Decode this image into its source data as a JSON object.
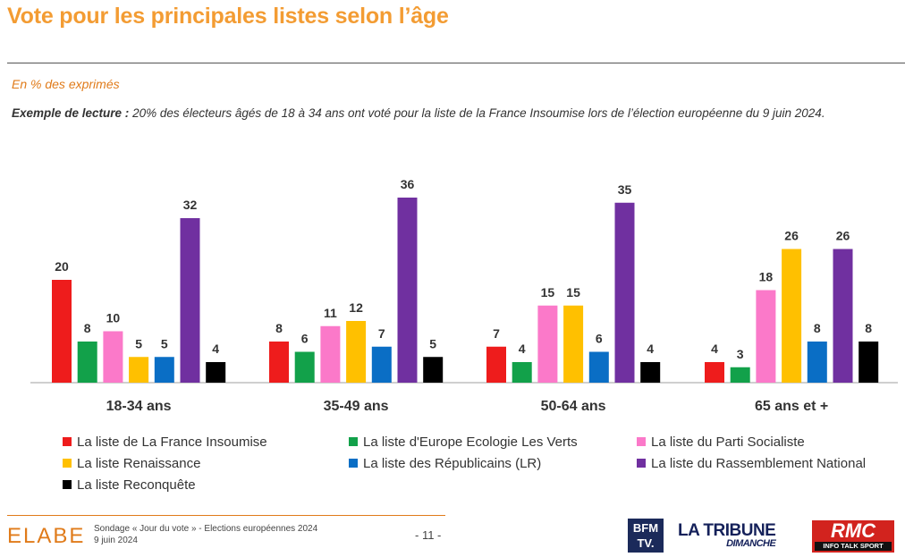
{
  "header": {
    "title": "Vote pour les principales listes selon l’âge",
    "subtitle": "En % des exprimés",
    "reading_label": "Exemple de lecture :",
    "reading_text": " 20% des électeurs âgés de 18 à 34 ans ont voté pour la liste de la France Insoumise lors de l’élection européenne du 9 juin 2024."
  },
  "chart_data": {
    "type": "bar",
    "title": "Vote pour les principales listes selon l’âge",
    "ylabel": "En % des exprimés",
    "ylim": [
      0,
      36
    ],
    "categories": [
      "18-34 ans",
      "35-49 ans",
      "50-64 ans",
      "65 ans et +"
    ],
    "series": [
      {
        "name": "La liste de La France Insoumise",
        "color": "#ee1c1c",
        "values": [
          20,
          8,
          7,
          4
        ]
      },
      {
        "name": "La liste d'Europe Ecologie Les Verts",
        "color": "#12a14a",
        "values": [
          8,
          6,
          4,
          3
        ]
      },
      {
        "name": "La liste du Parti Socialiste",
        "color": "#fb79c9",
        "values": [
          10,
          11,
          15,
          18
        ]
      },
      {
        "name": "La liste Renaissance",
        "color": "#ffc000",
        "values": [
          5,
          12,
          15,
          26
        ]
      },
      {
        "name": "La liste des Républicains (LR)",
        "color": "#0a6ec5",
        "values": [
          5,
          7,
          6,
          8
        ]
      },
      {
        "name": "La liste du Rassemblement National",
        "color": "#7030a0",
        "values": [
          32,
          36,
          35,
          26
        ]
      },
      {
        "name": "La liste Reconquête",
        "color": "#000000",
        "values": [
          4,
          5,
          4,
          8
        ]
      }
    ]
  },
  "footer": {
    "brand": "ELABE",
    "survey": "Sondage « Jour du vote » - Elections européennes 2024",
    "date": "9 juin 2024",
    "page": "- 11 -",
    "logo_bfm": "BFM TV.",
    "logo_tribune": "LA TRIBUNE",
    "logo_tribune_sub": "DIMANCHE",
    "logo_rmc": "RMC",
    "logo_rmc_sub": "INFO TALK SPORT"
  }
}
